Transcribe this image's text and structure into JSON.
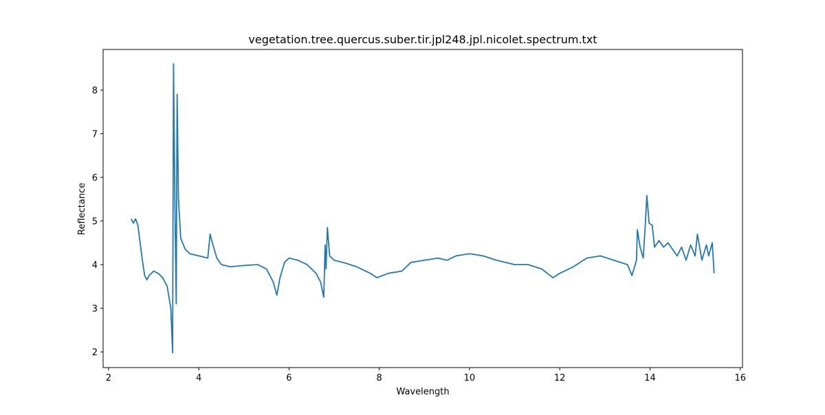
{
  "chart_data": {
    "type": "line",
    "title": "vegetation.tree.quercus.suber.tir.jpl248.jpl.nicolet.spectrum.txt",
    "x_label": "Wavelength",
    "y_label": "Reflectance",
    "x": [
      2.5,
      2.55,
      2.6,
      2.65,
      2.7,
      2.75,
      2.8,
      2.85,
      2.9,
      2.95,
      3.0,
      3.1,
      3.2,
      3.3,
      3.38,
      3.42,
      3.44,
      3.47,
      3.5,
      3.52,
      3.55,
      3.6,
      3.7,
      3.8,
      4.0,
      4.2,
      4.25,
      4.3,
      4.4,
      4.5,
      4.7,
      5.0,
      5.3,
      5.5,
      5.65,
      5.73,
      5.8,
      5.9,
      6.0,
      6.2,
      6.4,
      6.6,
      6.7,
      6.77,
      6.8,
      6.82,
      6.85,
      6.9,
      7.0,
      7.2,
      7.5,
      7.8,
      7.95,
      8.2,
      8.5,
      8.7,
      9.0,
      9.3,
      9.5,
      9.7,
      10.0,
      10.3,
      10.6,
      11.0,
      11.3,
      11.6,
      11.85,
      12.0,
      12.3,
      12.6,
      12.9,
      13.2,
      13.5,
      13.6,
      13.7,
      13.72,
      13.78,
      13.85,
      13.9,
      13.93,
      13.98,
      14.05,
      14.1,
      14.2,
      14.3,
      14.4,
      14.5,
      14.6,
      14.7,
      14.8,
      14.9,
      15.0,
      15.05,
      15.15,
      15.25,
      15.3,
      15.38,
      15.42
    ],
    "series": [
      {
        "name": "Reflectance",
        "color": "#1f77b4",
        "values": [
          5.05,
          4.95,
          5.05,
          4.9,
          4.5,
          4.1,
          3.75,
          3.65,
          3.75,
          3.8,
          3.85,
          3.8,
          3.7,
          3.5,
          3.0,
          1.98,
          8.6,
          5.5,
          3.1,
          7.9,
          5.5,
          4.6,
          4.35,
          4.25,
          4.2,
          4.15,
          4.7,
          4.5,
          4.15,
          4.0,
          3.95,
          3.98,
          4.0,
          3.9,
          3.6,
          3.3,
          3.7,
          4.05,
          4.15,
          4.1,
          4.0,
          3.8,
          3.6,
          3.25,
          4.45,
          3.9,
          4.85,
          4.2,
          4.1,
          4.05,
          3.95,
          3.8,
          3.7,
          3.8,
          3.85,
          4.05,
          4.1,
          4.15,
          4.1,
          4.2,
          4.25,
          4.2,
          4.1,
          4.0,
          4.0,
          3.9,
          3.7,
          3.8,
          3.95,
          4.15,
          4.2,
          4.1,
          4.0,
          3.75,
          4.1,
          4.8,
          4.4,
          4.15,
          5.0,
          5.58,
          4.95,
          4.9,
          4.4,
          4.55,
          4.4,
          4.5,
          4.35,
          4.2,
          4.4,
          4.1,
          4.45,
          4.2,
          4.7,
          4.1,
          4.45,
          4.2,
          4.5,
          3.8
        ]
      }
    ],
    "xlim": [
      1.88,
      16.05
    ],
    "ylim": [
      1.64,
      8.93
    ],
    "xticks": [
      2,
      4,
      6,
      8,
      10,
      12,
      14,
      16
    ],
    "yticks": [
      2,
      3,
      4,
      5,
      6,
      7,
      8
    ]
  }
}
